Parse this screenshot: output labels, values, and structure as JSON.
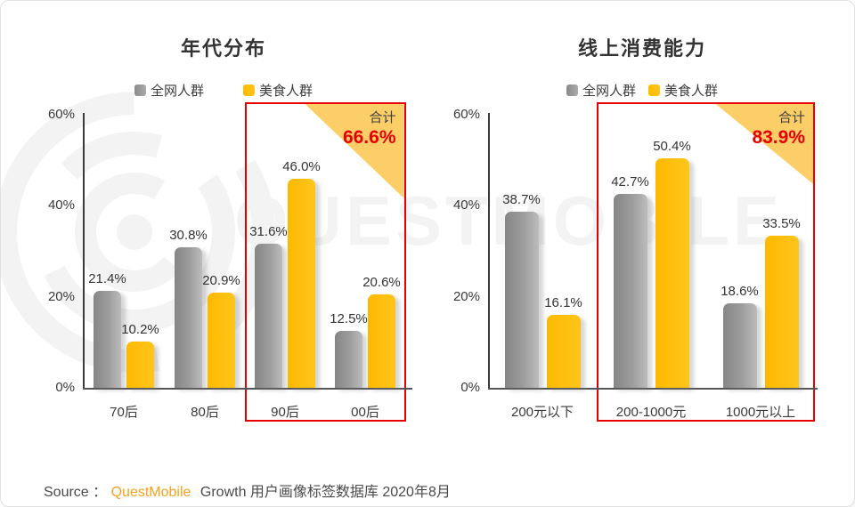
{
  "watermark": {
    "text": "QUESTMOBILE"
  },
  "colors": {
    "bar_all_network": "#9b9b9b",
    "bar_food_group": "#ffc000",
    "highlight_border": "#e60000",
    "highlight_total_value": "#e60000",
    "highlight_triangle": "#fbce68",
    "brand_orange": "#f9a11b"
  },
  "chart_data": [
    {
      "type": "bar",
      "title": "年代分布",
      "categories": [
        "70后",
        "80后",
        "90后",
        "00后"
      ],
      "series": [
        {
          "name": "全网人群",
          "color": "#9b9b9b",
          "values": [
            21.4,
            30.8,
            31.6,
            12.5
          ]
        },
        {
          "name": "美食人群",
          "color": "#ffc000",
          "values": [
            10.2,
            20.9,
            46.0,
            20.6
          ]
        }
      ],
      "value_labels": [
        [
          "21.4%",
          "30.8%",
          "31.6%",
          "12.5%"
        ],
        [
          "10.2%",
          "20.9%",
          "46.0%",
          "20.6%"
        ]
      ],
      "ylabel": "",
      "xlabel": "",
      "ylim": [
        0,
        60
      ],
      "yticks": [
        "0%",
        "20%",
        "40%",
        "60%"
      ],
      "grid": "off",
      "legend_position": "top",
      "highlight": {
        "categories": [
          "90后",
          "00后"
        ],
        "label": "合计",
        "value": "66.6%"
      }
    },
    {
      "type": "bar",
      "title": "线上消费能力",
      "categories": [
        "200元以下",
        "200-1000元",
        "1000元以上"
      ],
      "series": [
        {
          "name": "全网人群",
          "color": "#9b9b9b",
          "values": [
            38.7,
            42.7,
            18.6
          ]
        },
        {
          "name": "美食人群",
          "color": "#ffc000",
          "values": [
            16.1,
            50.4,
            33.5
          ]
        }
      ],
      "value_labels": [
        [
          "38.7%",
          "42.7%",
          "18.6%"
        ],
        [
          "16.1%",
          "50.4%",
          "33.5%"
        ]
      ],
      "ylabel": "",
      "xlabel": "",
      "ylim": [
        0,
        60
      ],
      "yticks": [
        "0%",
        "20%",
        "40%",
        "60%"
      ],
      "grid": "off",
      "legend_position": "top",
      "highlight": {
        "categories": [
          "200-1000元",
          "1000元以上"
        ],
        "label": "合计",
        "value": "83.9%"
      }
    }
  ],
  "source": {
    "prefix": "Source ：",
    "brand": "QuestMobile",
    "rest": "Growth 用户画像标签数据库 2020年8月"
  }
}
